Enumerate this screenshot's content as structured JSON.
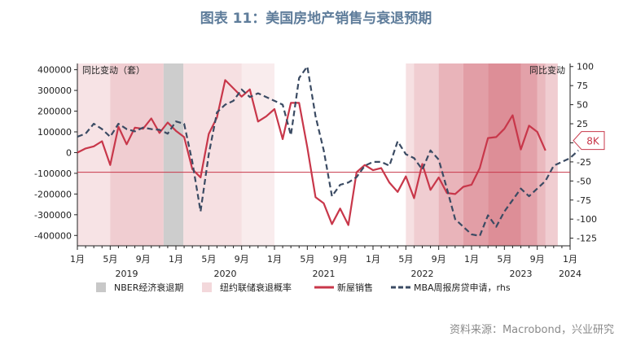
{
  "figure_title": "图表 11：美国房地产销售与衰退预期",
  "source_text": "资料来源：Macrobond，兴业研究",
  "colors": {
    "title": "#5f7d9b",
    "new_home_sales": "#c8374a",
    "mba_applications": "#3b4b63",
    "nber_recession": "#c8c8c8",
    "ny_fed_prob": "#d0636f",
    "threshold_line": "#c8374a"
  },
  "chart_data": {
    "type": "line",
    "left_axis_label": "同比变动（套）",
    "right_axis_label": "同比变动",
    "ylim_left": [
      -450000,
      430000
    ],
    "ylim_right": [
      -135,
      104
    ],
    "left_ticks": [
      "400000",
      "300000",
      "200000",
      "100000",
      "0",
      "-100000",
      "-200000",
      "-300000",
      "-400000"
    ],
    "left_tick_values": [
      400000,
      300000,
      200000,
      100000,
      0,
      -100000,
      -200000,
      -300000,
      -400000
    ],
    "right_ticks": [
      "100",
      "75",
      "50",
      "25",
      "0",
      "-25",
      "-50",
      "-75",
      "-100",
      "-125"
    ],
    "right_tick_values": [
      100,
      75,
      50,
      25,
      0,
      -25,
      -50,
      -75,
      -100,
      -125
    ],
    "x_range": [
      "2019-01",
      "2024-01"
    ],
    "x_tick_labels": [
      {
        "m": 0,
        "label": "1月"
      },
      {
        "m": 4,
        "label": "5月"
      },
      {
        "m": 8,
        "label": "9月"
      },
      {
        "m": 12,
        "label": "1月"
      },
      {
        "m": 16,
        "label": "5月"
      },
      {
        "m": 20,
        "label": "9月"
      },
      {
        "m": 24,
        "label": "1月"
      },
      {
        "m": 28,
        "label": "5月"
      },
      {
        "m": 32,
        "label": "9月"
      },
      {
        "m": 36,
        "label": "1月"
      },
      {
        "m": 40,
        "label": "5月"
      },
      {
        "m": 44,
        "label": "9月"
      },
      {
        "m": 48,
        "label": "1月"
      },
      {
        "m": 52,
        "label": "5月"
      },
      {
        "m": 56,
        "label": "9月"
      },
      {
        "m": 60,
        "label": "1月"
      }
    ],
    "year_labels": [
      {
        "m": 6,
        "label": "2019"
      },
      {
        "m": 18,
        "label": "2020"
      },
      {
        "m": 30,
        "label": "2021"
      },
      {
        "m": 42,
        "label": "2022"
      },
      {
        "m": 54,
        "label": "2023"
      },
      {
        "m": 60,
        "label": "2024"
      }
    ],
    "nber_recession": [
      {
        "start": 10.5,
        "end": 12.9
      }
    ],
    "ny_fed_probability_bands": [
      {
        "start": 0,
        "end": 4,
        "level": 0.18
      },
      {
        "start": 4,
        "end": 10.5,
        "level": 0.32
      },
      {
        "start": 12.9,
        "end": 20,
        "level": 0.2
      },
      {
        "start": 20,
        "end": 24,
        "level": 0.12
      },
      {
        "start": 40,
        "end": 41,
        "level": 0.2
      },
      {
        "start": 41,
        "end": 44,
        "level": 0.32
      },
      {
        "start": 44,
        "end": 47,
        "level": 0.48
      },
      {
        "start": 47,
        "end": 50,
        "level": 0.62
      },
      {
        "start": 50,
        "end": 54,
        "level": 0.72
      },
      {
        "start": 54,
        "end": 56,
        "level": 0.6
      },
      {
        "start": 56,
        "end": 57,
        "level": 0.45
      },
      {
        "start": 57,
        "end": 58.5,
        "level": 0.32
      }
    ],
    "threshold_left": -95000,
    "annotation": {
      "label": "8K",
      "y_right": 3
    },
    "legend": [
      {
        "key": "nber",
        "label": "NBER经济衰退期",
        "kind": "box"
      },
      {
        "key": "prob",
        "label": "纽约联储衰退概率",
        "kind": "box"
      },
      {
        "key": "sales",
        "label": "新屋销售",
        "kind": "line"
      },
      {
        "key": "mba",
        "label": "MBA周报房贷申请，rhs",
        "kind": "dash"
      }
    ],
    "series": [
      {
        "name": "新屋销售",
        "axis": "left",
        "values": [
          0,
          20000,
          30000,
          55000,
          -60000,
          125000,
          40000,
          120000,
          115000,
          165000,
          95000,
          145000,
          105000,
          75000,
          -80000,
          -120000,
          90000,
          170000,
          350000,
          310000,
          270000,
          305000,
          150000,
          175000,
          210000,
          65000,
          240000,
          240000,
          25000,
          -215000,
          -245000,
          -345000,
          -270000,
          -350000,
          -95000,
          -60000,
          -85000,
          -75000,
          -145000,
          -190000,
          -115000,
          -220000,
          -55000,
          -180000,
          -120000,
          -195000,
          -200000,
          -165000,
          -155000,
          -75000,
          70000,
          75000,
          115000,
          180000,
          15000,
          130000,
          100000,
          10000
        ]
      },
      {
        "name": "MBA周报房贷申请，rhs",
        "axis": "right",
        "values": [
          8,
          12,
          25,
          18,
          8,
          25,
          18,
          15,
          20,
          18,
          17,
          12,
          28,
          25,
          -25,
          -90,
          -15,
          40,
          50,
          55,
          70,
          60,
          65,
          60,
          55,
          50,
          10,
          85,
          100,
          35,
          -10,
          -70,
          -55,
          -52,
          -45,
          -30,
          -25,
          -25,
          -30,
          2,
          -15,
          -20,
          -35,
          -10,
          -22,
          -60,
          -100,
          -110,
          -120,
          -122,
          -95,
          -110,
          -90,
          -75,
          -60,
          -70,
          -60,
          -50,
          -30,
          -25,
          -20,
          -10
        ]
      }
    ]
  }
}
